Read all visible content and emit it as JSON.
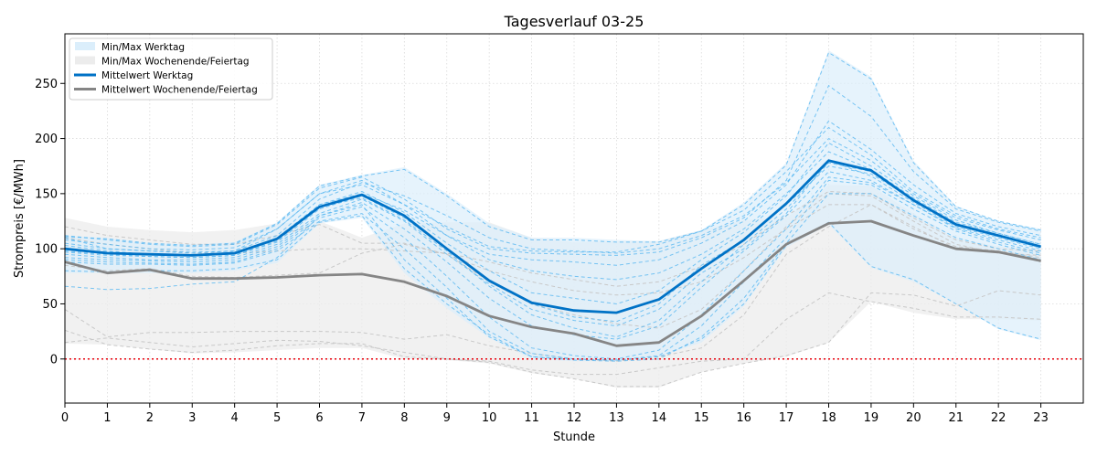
{
  "chart_data": {
    "type": "line",
    "title": "Tagesverlauf 03-25",
    "xlabel": "Stunde",
    "ylabel": "Strompreis [€/MWh]",
    "xlim": [
      0,
      24
    ],
    "ylim": [
      -40,
      295
    ],
    "xticks": [
      0,
      1,
      2,
      3,
      4,
      5,
      6,
      7,
      8,
      9,
      10,
      11,
      12,
      13,
      14,
      15,
      16,
      17,
      18,
      19,
      20,
      21,
      22,
      23
    ],
    "yticks": [
      0,
      50,
      100,
      150,
      200,
      250
    ],
    "grid": true,
    "legend_position": "top-left",
    "zero_line_color": "#e8000b",
    "colors": {
      "weekday": "#0072c6",
      "weekday_thin": "#4db3f0",
      "weekday_band": "#dbeefb",
      "weekend": "#858585",
      "weekend_thin": "#c8c8c8",
      "weekend_band": "#ececec"
    },
    "legend": [
      {
        "label": "Min/Max Werktag",
        "kind": "band",
        "color_key": "weekday_band"
      },
      {
        "label": "Min/Max Wochenende/Feiertag",
        "kind": "band",
        "color_key": "weekend_band"
      },
      {
        "label": "Mittelwert Werktag",
        "kind": "line",
        "color_key": "weekday"
      },
      {
        "label": "Mittelwert Wochenende/Feiertag",
        "kind": "line",
        "color_key": "weekend"
      }
    ],
    "series": [
      {
        "name": "Mittelwert Werktag",
        "role": "mean",
        "group": "weekday",
        "values": [
          100,
          96,
          95,
          94,
          96,
          109,
          138,
          149,
          130,
          100,
          71,
          51,
          44,
          42,
          54,
          82,
          108,
          141,
          180,
          171,
          144,
          122,
          112,
          102
        ]
      },
      {
        "name": "Mittelwert Wochenende/Feiertag",
        "role": "mean",
        "group": "weekend",
        "values": [
          88,
          78,
          81,
          73,
          73,
          74,
          76,
          77,
          70,
          57,
          39,
          29,
          23,
          12,
          15,
          39,
          71,
          104,
          123,
          125,
          112,
          100,
          97,
          89
        ]
      },
      {
        "name": "Min/Max Werktag",
        "role": "band",
        "group": "weekday",
        "lower": [
          78,
          78,
          78,
          78,
          80,
          87,
          123,
          128,
          78,
          46,
          19,
          0,
          -2,
          -2,
          2,
          15,
          48,
          101,
          122,
          83,
          70,
          50,
          27,
          17
        ],
        "upper": [
          112,
          110,
          105,
          104,
          106,
          124,
          158,
          167,
          174,
          150,
          123,
          110,
          110,
          108,
          107,
          117,
          142,
          178,
          280,
          256,
          180,
          139,
          125,
          118
        ]
      },
      {
        "name": "Min/Max Wochenende/Feiertag",
        "role": "band",
        "group": "weekend",
        "lower": [
          14,
          13,
          9,
          5,
          6,
          8,
          10,
          10,
          0,
          -1,
          -4,
          -13,
          -18,
          -26,
          -26,
          -12,
          -4,
          2,
          15,
          52,
          42,
          36,
          36,
          35
        ],
        "upper": [
          128,
          120,
          117,
          115,
          117,
          123,
          125,
          110,
          123,
          124,
          124,
          110,
          106,
          107,
          107,
          117,
          126,
          128,
          158,
          157,
          132,
          110,
          102,
          100
        ]
      },
      {
        "role": "day",
        "group": "weekday",
        "values": [
          110,
          100,
          98,
          96,
          98,
          118,
          150,
          158,
          140,
          120,
          102,
          98,
          97,
          97,
          104,
          116,
          135,
          170,
          210,
          185,
          152,
          130,
          118,
          110
        ]
      },
      {
        "role": "day",
        "group": "weekday",
        "values": [
          103,
          98,
          95,
          94,
          95,
          108,
          140,
          152,
          133,
          105,
          80,
          60,
          55,
          50,
          62,
          90,
          115,
          148,
          196,
          175,
          148,
          126,
          114,
          104
        ]
      },
      {
        "role": "day",
        "group": "weekday",
        "values": [
          95,
          92,
          90,
          90,
          92,
          104,
          132,
          145,
          125,
          95,
          68,
          45,
          35,
          30,
          45,
          78,
          100,
          132,
          180,
          166,
          142,
          120,
          110,
          100
        ]
      },
      {
        "role": "day",
        "group": "weekday",
        "values": [
          98,
          95,
          93,
          92,
          94,
          106,
          136,
          148,
          128,
          100,
          72,
          50,
          38,
          34,
          50,
          85,
          108,
          140,
          175,
          168,
          145,
          122,
          112,
          102
        ]
      },
      {
        "role": "day",
        "group": "weekday",
        "values": [
          105,
          100,
          98,
          97,
          98,
          112,
          145,
          160,
          148,
          130,
          110,
          100,
          98,
          96,
          100,
          112,
          130,
          160,
          200,
          180,
          150,
          128,
          117,
          108
        ]
      },
      {
        "role": "day",
        "group": "weekday",
        "values": [
          90,
          88,
          87,
          86,
          88,
          100,
          128,
          138,
          110,
          75,
          38,
          10,
          3,
          0,
          8,
          40,
          80,
          118,
          165,
          160,
          140,
          118,
          106,
          96
        ]
      },
      {
        "role": "day",
        "group": "weekday",
        "values": [
          88,
          86,
          86,
          85,
          87,
          98,
          125,
          132,
          100,
          65,
          25,
          5,
          0,
          -1,
          3,
          30,
          70,
          110,
          162,
          158,
          136,
          116,
          104,
          94
        ]
      },
      {
        "role": "day",
        "group": "weekday",
        "values": [
          100,
          97,
          95,
          94,
          96,
          110,
          140,
          150,
          135,
          112,
          90,
          80,
          75,
          72,
          78,
          95,
          118,
          150,
          188,
          172,
          146,
          124,
          114,
          104
        ]
      },
      {
        "role": "day",
        "group": "weekday",
        "values": [
          66,
          63,
          64,
          68,
          70,
          92,
          130,
          140,
          90,
          55,
          20,
          2,
          -1,
          -2,
          0,
          20,
          55,
          105,
          150,
          150,
          130,
          110,
          100,
          90
        ]
      },
      {
        "role": "day",
        "group": "weekday",
        "values": [
          97,
          94,
          93,
          92,
          94,
          107,
          138,
          146,
          126,
          98,
          66,
          40,
          28,
          20,
          35,
          70,
          104,
          136,
          178,
          170,
          144,
          121,
          111,
          101
        ]
      },
      {
        "role": "day",
        "group": "weekday",
        "values": [
          112,
          108,
          104,
          102,
          104,
          122,
          155,
          165,
          145,
          118,
          100,
          96,
          95,
          94,
          97,
          110,
          128,
          162,
          248,
          220,
          170,
          136,
          124,
          116
        ]
      },
      {
        "role": "day",
        "group": "weekday",
        "values": [
          108,
          104,
          100,
          99,
          101,
          118,
          150,
          162,
          140,
          112,
          95,
          90,
          88,
          85,
          90,
          105,
          125,
          158,
          216,
          190,
          158,
          132,
          120,
          112
        ]
      },
      {
        "role": "day",
        "group": "weekday",
        "values": [
          92,
          90,
          89,
          88,
          90,
          102,
          130,
          142,
          118,
          88,
          55,
          30,
          22,
          18,
          30,
          65,
          98,
          130,
          170,
          162,
          140,
          119,
          108,
          98
        ]
      },
      {
        "role": "day",
        "group": "weekday",
        "values": [
          111,
          109,
          105,
          103,
          105,
          123,
          157,
          166,
          172,
          148,
          120,
          108,
          108,
          106,
          106,
          116,
          140,
          176,
          278,
          254,
          178,
          138,
          125,
          117
        ]
      },
      {
        "role": "day",
        "group": "weekday",
        "values": [
          80,
          79,
          80,
          80,
          82,
          90,
          124,
          130,
          82,
          50,
          22,
          2,
          0,
          -1,
          2,
          18,
          50,
          103,
          124,
          84,
          72,
          50,
          28,
          18
        ]
      },
      {
        "role": "day",
        "group": "weekend",
        "values": [
          120,
          112,
          108,
          104,
          104,
          112,
          122,
          105,
          105,
          95,
          70,
          50,
          40,
          32,
          28,
          45,
          80,
          120,
          150,
          148,
          125,
          104,
          96,
          94
        ]
      },
      {
        "role": "day",
        "group": "weekend",
        "values": [
          85,
          80,
          82,
          75,
          74,
          76,
          78,
          96,
          104,
          95,
          80,
          70,
          62,
          58,
          60,
          70,
          92,
          118,
          140,
          140,
          118,
          102,
          98,
          92
        ]
      },
      {
        "role": "day",
        "group": "weekend",
        "values": [
          45,
          20,
          24,
          24,
          25,
          25,
          25,
          24,
          18,
          22,
          12,
          5,
          0,
          -2,
          2,
          10,
          40,
          95,
          120,
          140,
          120,
          100,
          98,
          88
        ]
      },
      {
        "role": "day",
        "group": "weekend",
        "values": [
          26,
          13,
          9,
          6,
          8,
          12,
          14,
          14,
          2,
          0,
          -2,
          -10,
          -14,
          -14,
          -8,
          -2,
          0,
          36,
          60,
          52,
          46,
          38,
          38,
          36
        ]
      },
      {
        "role": "day",
        "group": "weekend",
        "values": [
          15,
          19,
          15,
          11,
          14,
          17,
          16,
          12,
          6,
          0,
          -3,
          -12,
          -18,
          -25,
          -25,
          -12,
          -4,
          3,
          15,
          60,
          58,
          48,
          62,
          58
        ]
      },
      {
        "role": "day",
        "group": "weekend",
        "values": [
          110,
          104,
          100,
          96,
          96,
          98,
          100,
          100,
          98,
          96,
          88,
          78,
          72,
          66,
          70,
          84,
          104,
          130,
          152,
          150,
          128,
          108,
          100,
          98
        ]
      }
    ]
  }
}
